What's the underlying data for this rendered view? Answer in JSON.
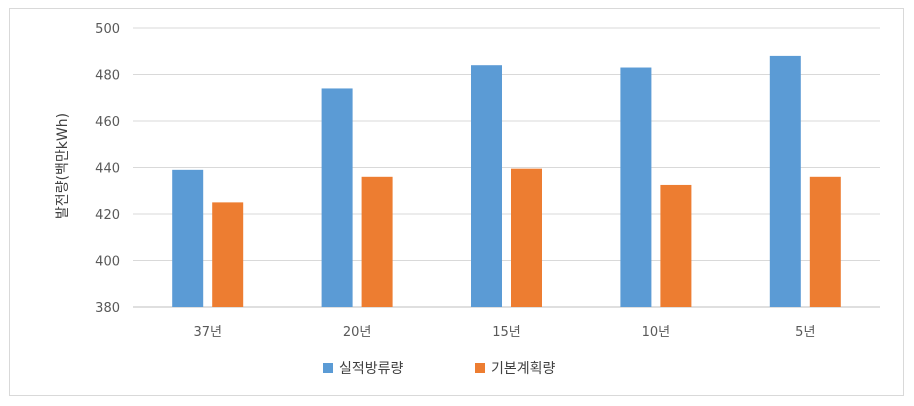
{
  "chart_data": {
    "type": "bar",
    "title": "",
    "xlabel": "",
    "ylabel": "발전량(백만kWh)",
    "categories": [
      "37년",
      "20년",
      "15년",
      "10년",
      "5년"
    ],
    "series": [
      {
        "name": "실적방류량",
        "color": "#5b9bd5",
        "values": [
          439,
          474,
          484,
          483,
          488
        ]
      },
      {
        "name": "기본계획량",
        "color": "#ed7d31",
        "values": [
          425,
          436,
          439.5,
          432.5,
          436
        ]
      }
    ],
    "ylim": [
      380,
      500
    ],
    "yticks": [
      380,
      400,
      420,
      440,
      460,
      480,
      500
    ],
    "grid": true,
    "legend_position": "bottom"
  }
}
